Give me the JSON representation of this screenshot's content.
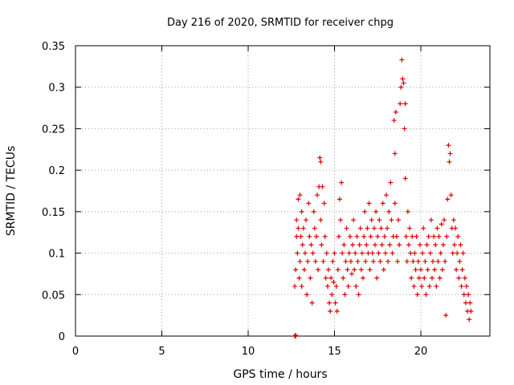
{
  "chart_data": {
    "type": "scatter",
    "title": "Day 216 of 2020, SRMTID for receiver chpg",
    "xlabel": "GPS time / hours",
    "ylabel": "SRMTID / TECUs",
    "xlim": [
      0,
      24
    ],
    "ylim": [
      0,
      0.35
    ],
    "xticks": [
      0,
      5,
      10,
      15,
      20
    ],
    "xtick_labels": [
      "0",
      "5",
      "10",
      "15",
      "20"
    ],
    "yticks": [
      0,
      0.05,
      0.1,
      0.15,
      0.2,
      0.25,
      0.3,
      0.35
    ],
    "ytick_labels": [
      "0",
      "0.05",
      "0.1",
      "0.15",
      "0.2",
      "0.25",
      "0.3",
      "0.35"
    ],
    "grid": true,
    "marker": "+",
    "color": "#e00000",
    "series": [
      {
        "name": "SRMTID",
        "points": [
          [
            12.7,
            0.0
          ],
          [
            12.75,
            0.0
          ],
          [
            12.75,
            0.001
          ],
          [
            12.7,
            0.06
          ],
          [
            12.75,
            0.08
          ],
          [
            12.8,
            0.12
          ],
          [
            12.8,
            0.14
          ],
          [
            12.85,
            0.1
          ],
          [
            12.9,
            0.165
          ],
          [
            12.9,
            0.13
          ],
          [
            12.95,
            0.07
          ],
          [
            13.0,
            0.17
          ],
          [
            13.0,
            0.09
          ],
          [
            13.05,
            0.12
          ],
          [
            13.1,
            0.15
          ],
          [
            13.1,
            0.06
          ],
          [
            13.15,
            0.11
          ],
          [
            13.2,
            0.13
          ],
          [
            13.25,
            0.08
          ],
          [
            13.3,
            0.1
          ],
          [
            13.35,
            0.14
          ],
          [
            13.4,
            0.05
          ],
          [
            13.45,
            0.09
          ],
          [
            13.5,
            0.16
          ],
          [
            13.55,
            0.12
          ],
          [
            13.6,
            0.07
          ],
          [
            13.65,
            0.11
          ],
          [
            13.7,
            0.04
          ],
          [
            13.75,
            0.1
          ],
          [
            13.8,
            0.15
          ],
          [
            13.85,
            0.13
          ],
          [
            13.9,
            0.09
          ],
          [
            13.95,
            0.12
          ],
          [
            14.0,
            0.17
          ],
          [
            14.05,
            0.08
          ],
          [
            14.1,
            0.18
          ],
          [
            14.15,
            0.215
          ],
          [
            14.2,
            0.14
          ],
          [
            14.2,
            0.21
          ],
          [
            14.25,
            0.11
          ],
          [
            14.3,
            0.18
          ],
          [
            14.35,
            0.09
          ],
          [
            14.4,
            0.16
          ],
          [
            14.45,
            0.12
          ],
          [
            14.5,
            0.07
          ],
          [
            14.55,
            0.1
          ],
          [
            14.6,
            0.06
          ],
          [
            14.65,
            0.08
          ],
          [
            14.7,
            0.04
          ],
          [
            14.75,
            0.03
          ],
          [
            14.8,
            0.07
          ],
          [
            14.85,
            0.05
          ],
          [
            14.9,
            0.09
          ],
          [
            14.95,
            0.065
          ],
          [
            15.0,
            0.1
          ],
          [
            15.05,
            0.04
          ],
          [
            15.1,
            0.06
          ],
          [
            15.15,
            0.03
          ],
          [
            15.2,
            0.08
          ],
          [
            15.25,
            0.12
          ],
          [
            15.3,
            0.165
          ],
          [
            15.35,
            0.14
          ],
          [
            15.4,
            0.185
          ],
          [
            15.45,
            0.1
          ],
          [
            15.5,
            0.07
          ],
          [
            15.55,
            0.11
          ],
          [
            15.6,
            0.05
          ],
          [
            15.65,
            0.09
          ],
          [
            15.7,
            0.13
          ],
          [
            15.75,
            0.08
          ],
          [
            15.8,
            0.06
          ],
          [
            15.85,
            0.1
          ],
          [
            15.9,
            0.12
          ],
          [
            15.95,
            0.09
          ],
          [
            16.0,
            0.075
          ],
          [
            16.05,
            0.11
          ],
          [
            16.1,
            0.14
          ],
          [
            16.15,
            0.08
          ],
          [
            16.2,
            0.1
          ],
          [
            16.25,
            0.06
          ],
          [
            16.3,
            0.12
          ],
          [
            16.35,
            0.09
          ],
          [
            16.4,
            0.05
          ],
          [
            16.45,
            0.11
          ],
          [
            16.5,
            0.13
          ],
          [
            16.55,
            0.08
          ],
          [
            16.6,
            0.1
          ],
          [
            16.65,
            0.07
          ],
          [
            16.7,
            0.12
          ],
          [
            16.75,
            0.15
          ],
          [
            16.8,
            0.09
          ],
          [
            16.85,
            0.11
          ],
          [
            16.9,
            0.13
          ],
          [
            16.95,
            0.1
          ],
          [
            17.0,
            0.16
          ],
          [
            17.05,
            0.08
          ],
          [
            17.1,
            0.12
          ],
          [
            17.15,
            0.14
          ],
          [
            17.2,
            0.1
          ],
          [
            17.25,
            0.09
          ],
          [
            17.3,
            0.13
          ],
          [
            17.35,
            0.11
          ],
          [
            17.4,
            0.15
          ],
          [
            17.45,
            0.07
          ],
          [
            17.5,
            0.12
          ],
          [
            17.55,
            0.1
          ],
          [
            17.6,
            0.14
          ],
          [
            17.65,
            0.09
          ],
          [
            17.7,
            0.13
          ],
          [
            17.75,
            0.11
          ],
          [
            17.8,
            0.16
          ],
          [
            17.85,
            0.08
          ],
          [
            17.9,
            0.12
          ],
          [
            17.95,
            0.1
          ],
          [
            18.0,
            0.17
          ],
          [
            18.05,
            0.13
          ],
          [
            18.1,
            0.09
          ],
          [
            18.15,
            0.15
          ],
          [
            18.2,
            0.11
          ],
          [
            18.25,
            0.185
          ],
          [
            18.3,
            0.14
          ],
          [
            18.35,
            0.1
          ],
          [
            18.4,
            0.12
          ],
          [
            18.45,
            0.26
          ],
          [
            18.5,
            0.22
          ],
          [
            18.55,
            0.27
          ],
          [
            18.5,
            0.16
          ],
          [
            18.6,
            0.12
          ],
          [
            18.65,
            0.09
          ],
          [
            18.7,
            0.14
          ],
          [
            18.75,
            0.11
          ],
          [
            18.8,
            0.28
          ],
          [
            18.85,
            0.3
          ],
          [
            18.9,
            0.333
          ],
          [
            18.95,
            0.31
          ],
          [
            19.0,
            0.305
          ],
          [
            19.05,
            0.25
          ],
          [
            19.1,
            0.28
          ],
          [
            19.1,
            0.19
          ],
          [
            19.15,
            0.12
          ],
          [
            19.2,
            0.09
          ],
          [
            19.25,
            0.15
          ],
          [
            19.3,
            0.11
          ],
          [
            19.35,
            0.13
          ],
          [
            19.4,
            0.1
          ],
          [
            19.45,
            0.07
          ],
          [
            19.5,
            0.12
          ],
          [
            19.55,
            0.09
          ],
          [
            19.6,
            0.06
          ],
          [
            19.65,
            0.1
          ],
          [
            19.7,
            0.08
          ],
          [
            19.75,
            0.12
          ],
          [
            19.8,
            0.05
          ],
          [
            19.85,
            0.09
          ],
          [
            19.9,
            0.07
          ],
          [
            19.95,
            0.11
          ],
          [
            20.0,
            0.08
          ],
          [
            20.05,
            0.06
          ],
          [
            20.1,
            0.1
          ],
          [
            20.15,
            0.13
          ],
          [
            20.2,
            0.07
          ],
          [
            20.25,
            0.09
          ],
          [
            20.3,
            0.05
          ],
          [
            20.35,
            0.11
          ],
          [
            20.4,
            0.08
          ],
          [
            20.45,
            0.12
          ],
          [
            20.5,
            0.06
          ],
          [
            20.55,
            0.1
          ],
          [
            20.6,
            0.14
          ],
          [
            20.65,
            0.07
          ],
          [
            20.7,
            0.09
          ],
          [
            20.75,
            0.12
          ],
          [
            20.8,
            0.08
          ],
          [
            20.85,
            0.11
          ],
          [
            20.9,
            0.06
          ],
          [
            20.95,
            0.13
          ],
          [
            21.0,
            0.09
          ],
          [
            21.05,
            0.12
          ],
          [
            21.1,
            0.07
          ],
          [
            21.15,
            0.1
          ],
          [
            21.2,
            0.135
          ],
          [
            21.25,
            0.08
          ],
          [
            21.3,
            0.11
          ],
          [
            21.35,
            0.14
          ],
          [
            21.4,
            0.09
          ],
          [
            21.45,
            0.025
          ],
          [
            21.5,
            0.12
          ],
          [
            21.55,
            0.165
          ],
          [
            21.6,
            0.23
          ],
          [
            21.65,
            0.21
          ],
          [
            21.7,
            0.22
          ],
          [
            21.75,
            0.17
          ],
          [
            21.8,
            0.13
          ],
          [
            21.85,
            0.1
          ],
          [
            21.9,
            0.14
          ],
          [
            21.95,
            0.11
          ],
          [
            22.0,
            0.13
          ],
          [
            22.05,
            0.08
          ],
          [
            22.1,
            0.1
          ],
          [
            22.15,
            0.12
          ],
          [
            22.2,
            0.07
          ],
          [
            22.25,
            0.09
          ],
          [
            22.3,
            0.11
          ],
          [
            22.35,
            0.06
          ],
          [
            22.4,
            0.08
          ],
          [
            22.45,
            0.1
          ],
          [
            22.5,
            0.05
          ],
          [
            22.55,
            0.07
          ],
          [
            22.6,
            0.04
          ],
          [
            22.65,
            0.06
          ],
          [
            22.7,
            0.03
          ],
          [
            22.75,
            0.05
          ],
          [
            22.8,
            0.02
          ],
          [
            22.85,
            0.04
          ],
          [
            22.9,
            0.03
          ]
        ]
      }
    ]
  }
}
